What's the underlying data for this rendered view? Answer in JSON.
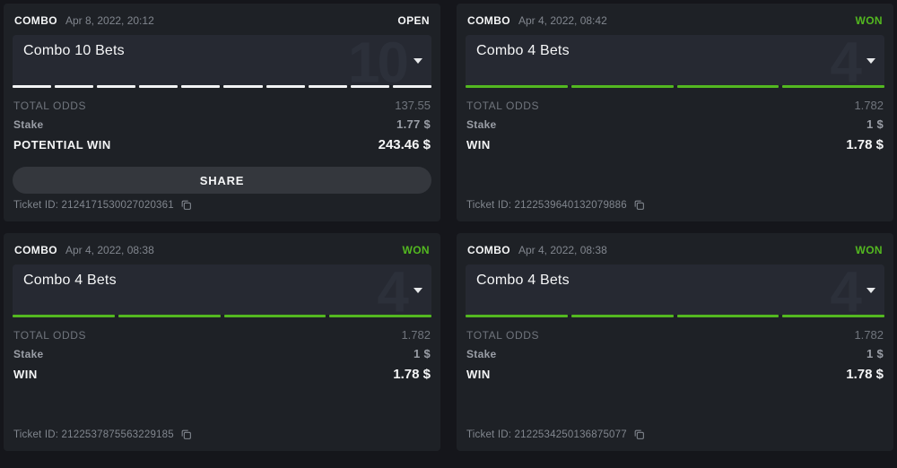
{
  "colors": {
    "green": "#53b820",
    "open_status": "#ffffff",
    "card_background": "#1e2126",
    "page_background": "#15161b"
  },
  "cards": [
    {
      "type_label": "COMBO",
      "datetime": "Apr 8, 2022, 20:12",
      "status": "OPEN",
      "title": "Combo 10 Bets",
      "bet_count": "10",
      "segments_count": 10,
      "total_odds_label": "TOTAL ODDS",
      "total_odds": "137.55",
      "stake_label": "Stake",
      "stake": "1.77 $",
      "result_label": "POTENTIAL WIN",
      "result": "243.46 $",
      "share_label": "SHARE",
      "ticket_label": "Ticket ID:",
      "ticket_id": "2124171530027020361",
      "ticket_text": "Ticket ID: 2124171530027020361"
    },
    {
      "type_label": "COMBO",
      "datetime": "Apr 4, 2022, 08:42",
      "status": "WON",
      "title": "Combo 4 Bets",
      "bet_count": "4",
      "segments_count": 4,
      "total_odds_label": "TOTAL ODDS",
      "total_odds": "1.782",
      "stake_label": "Stake",
      "stake": "1 $",
      "result_label": "WIN",
      "result": "1.78 $",
      "ticket_label": "Ticket ID:",
      "ticket_id": "2122539640132079886",
      "ticket_text": "Ticket ID: 2122539640132079886"
    },
    {
      "type_label": "COMBO",
      "datetime": "Apr 4, 2022, 08:38",
      "status": "WON",
      "title": "Combo 4 Bets",
      "bet_count": "4",
      "segments_count": 4,
      "total_odds_label": "TOTAL ODDS",
      "total_odds": "1.782",
      "stake_label": "Stake",
      "stake": "1 $",
      "result_label": "WIN",
      "result": "1.78 $",
      "ticket_label": "Ticket ID:",
      "ticket_id": "2122537875563229185",
      "ticket_text": "Ticket ID: 2122537875563229185"
    },
    {
      "type_label": "COMBO",
      "datetime": "Apr 4, 2022, 08:38",
      "status": "WON",
      "title": "Combo 4 Bets",
      "bet_count": "4",
      "segments_count": 4,
      "total_odds_label": "TOTAL ODDS",
      "total_odds": "1.782",
      "stake_label": "Stake",
      "stake": "1 $",
      "result_label": "WIN",
      "result": "1.78 $",
      "ticket_label": "Ticket ID:",
      "ticket_id": "2122534250136875077",
      "ticket_text": "Ticket ID: 2122534250136875077"
    }
  ]
}
